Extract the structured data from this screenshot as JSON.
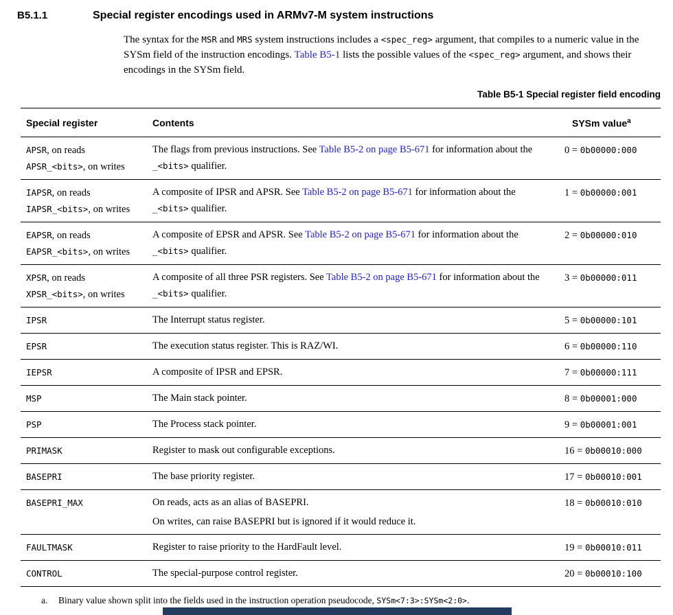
{
  "section": {
    "number": "B5.1.1",
    "title": "Special register encodings used in ARMv7-M system instructions"
  },
  "intro_segments": [
    {
      "k": "text",
      "s": "The syntax for the "
    },
    {
      "k": "code",
      "s": "MSR"
    },
    {
      "k": "text",
      "s": " and "
    },
    {
      "k": "code",
      "s": "MRS"
    },
    {
      "k": "text",
      "s": " system instructions includes a "
    },
    {
      "k": "code",
      "s": "<spec_reg>"
    },
    {
      "k": "text",
      "s": " argument, that compiles to a numeric value in the SYSm field of the instruction encodings. "
    },
    {
      "k": "link",
      "s": "Table B5-1"
    },
    {
      "k": "text",
      "s": " lists the possible values of the "
    },
    {
      "k": "code",
      "s": "<spec_reg>"
    },
    {
      "k": "text",
      "s": " argument, and shows their encodings in the SYSm field."
    }
  ],
  "table": {
    "caption": "Table B5-1 Special register field encoding",
    "columns": [
      "Special register",
      "Contents",
      "SYSm value"
    ],
    "sysm_sup": "a",
    "rows": [
      {
        "register": [
          [
            {
              "k": "code",
              "s": "APSR"
            },
            {
              "k": "text",
              "s": ", on reads"
            }
          ],
          [
            {
              "k": "code",
              "s": "APSR_<bits>"
            },
            {
              "k": "text",
              "s": ", on writes"
            }
          ]
        ],
        "contents": [
          [
            {
              "k": "text",
              "s": "The flags from previous instructions. See "
            },
            {
              "k": "link",
              "s": "Table B5-2 on page B5-671"
            },
            {
              "k": "text",
              "s": " for information about the "
            },
            {
              "k": "code",
              "s": "_<bits>"
            },
            {
              "k": "text",
              "s": " qualifier."
            }
          ]
        ],
        "sysm": {
          "decimal": "0",
          "binary": "0b00000:000"
        }
      },
      {
        "register": [
          [
            {
              "k": "code",
              "s": "IAPSR"
            },
            {
              "k": "text",
              "s": ", on reads"
            }
          ],
          [
            {
              "k": "code",
              "s": "IAPSR_<bits>"
            },
            {
              "k": "text",
              "s": ", on writes"
            }
          ]
        ],
        "contents": [
          [
            {
              "k": "text",
              "s": "A composite of IPSR and APSR. See "
            },
            {
              "k": "link",
              "s": "Table B5-2 on page B5-671"
            },
            {
              "k": "text",
              "s": " for information about the "
            },
            {
              "k": "code",
              "s": "_<bits>"
            },
            {
              "k": "text",
              "s": " qualifier."
            }
          ]
        ],
        "sysm": {
          "decimal": "1",
          "binary": "0b00000:001"
        }
      },
      {
        "register": [
          [
            {
              "k": "code",
              "s": "EAPSR"
            },
            {
              "k": "text",
              "s": ", on reads"
            }
          ],
          [
            {
              "k": "code",
              "s": "EAPSR_<bits>"
            },
            {
              "k": "text",
              "s": ", on writes"
            }
          ]
        ],
        "contents": [
          [
            {
              "k": "text",
              "s": "A composite of EPSR and APSR. See "
            },
            {
              "k": "link",
              "s": "Table B5-2 on page B5-671"
            },
            {
              "k": "text",
              "s": " for information about the "
            },
            {
              "k": "code",
              "s": "_<bits>"
            },
            {
              "k": "text",
              "s": " qualifier."
            }
          ]
        ],
        "sysm": {
          "decimal": "2",
          "binary": "0b00000:010"
        }
      },
      {
        "register": [
          [
            {
              "k": "code",
              "s": "XPSR"
            },
            {
              "k": "text",
              "s": ", on reads"
            }
          ],
          [
            {
              "k": "code",
              "s": "XPSR_<bits>"
            },
            {
              "k": "text",
              "s": ", on writes"
            }
          ]
        ],
        "contents": [
          [
            {
              "k": "text",
              "s": "A composite of all three PSR registers. See "
            },
            {
              "k": "link",
              "s": "Table B5-2 on page B5-671"
            },
            {
              "k": "text",
              "s": " for information about the "
            },
            {
              "k": "code",
              "s": "_<bits>"
            },
            {
              "k": "text",
              "s": " qualifier."
            }
          ]
        ],
        "sysm": {
          "decimal": "3",
          "binary": "0b00000:011"
        }
      },
      {
        "register": [
          [
            {
              "k": "code",
              "s": "IPSR"
            }
          ]
        ],
        "contents": [
          [
            {
              "k": "text",
              "s": "The Interrupt status register."
            }
          ]
        ],
        "sysm": {
          "decimal": "5",
          "binary": "0b00000:101"
        }
      },
      {
        "register": [
          [
            {
              "k": "code",
              "s": "EPSR"
            }
          ]
        ],
        "contents": [
          [
            {
              "k": "text",
              "s": "The execution status register. This is RAZ/WI."
            }
          ]
        ],
        "sysm": {
          "decimal": "6",
          "binary": "0b00000:110"
        }
      },
      {
        "register": [
          [
            {
              "k": "code",
              "s": "IEPSR"
            }
          ]
        ],
        "contents": [
          [
            {
              "k": "text",
              "s": "A composite of IPSR and EPSR."
            }
          ]
        ],
        "sysm": {
          "decimal": "7",
          "binary": "0b00000:111"
        }
      },
      {
        "register": [
          [
            {
              "k": "code",
              "s": "MSP"
            }
          ]
        ],
        "contents": [
          [
            {
              "k": "text",
              "s": "The Main stack pointer."
            }
          ]
        ],
        "sysm": {
          "decimal": "8",
          "binary": "0b00001:000"
        }
      },
      {
        "register": [
          [
            {
              "k": "code",
              "s": "PSP"
            }
          ]
        ],
        "contents": [
          [
            {
              "k": "text",
              "s": "The Process stack pointer."
            }
          ]
        ],
        "sysm": {
          "decimal": "9",
          "binary": "0b00001:001"
        }
      },
      {
        "register": [
          [
            {
              "k": "code",
              "s": "PRIMASK"
            }
          ]
        ],
        "contents": [
          [
            {
              "k": "text",
              "s": "Register to mask out configurable exceptions."
            }
          ]
        ],
        "sysm": {
          "decimal": "16",
          "binary": "0b00010:000"
        }
      },
      {
        "register": [
          [
            {
              "k": "code",
              "s": "BASEPRI"
            }
          ]
        ],
        "contents": [
          [
            {
              "k": "text",
              "s": "The base priority register."
            }
          ]
        ],
        "sysm": {
          "decimal": "17",
          "binary": "0b00010:001"
        }
      },
      {
        "register": [
          [
            {
              "k": "code",
              "s": "BASEPRI_MAX"
            }
          ]
        ],
        "contents": [
          [
            {
              "k": "text",
              "s": "On reads, acts as an alias of BASEPRI."
            }
          ],
          [
            {
              "k": "text",
              "s": "On writes, can raise BASEPRI but is ignored if it would reduce it."
            }
          ]
        ],
        "sysm": {
          "decimal": "18",
          "binary": "0b00010:010"
        }
      },
      {
        "register": [
          [
            {
              "k": "code",
              "s": "FAULTMASK"
            }
          ]
        ],
        "contents": [
          [
            {
              "k": "text",
              "s": "Register to raise priority to the HardFault level."
            }
          ]
        ],
        "sysm": {
          "decimal": "19",
          "binary": "0b00010:011"
        }
      },
      {
        "register": [
          [
            {
              "k": "code",
              "s": "CONTROL"
            }
          ]
        ],
        "contents": [
          [
            {
              "k": "text",
              "s": "The special-purpose control register."
            }
          ]
        ],
        "sysm": {
          "decimal": "20",
          "binary": "0b00010:100"
        }
      }
    ]
  },
  "footnote": {
    "marker": "a.",
    "segments": [
      {
        "k": "text",
        "s": "Binary value shown split into the fields used in the instruction operation pseudocode, "
      },
      {
        "k": "code",
        "s": "SYSm<7:3>:SYSm<2:0>"
      },
      {
        "k": "text",
        "s": "."
      }
    ]
  },
  "colors": {
    "link": "#2222CC",
    "accent_bar": "#243A5E",
    "rule": "#000000"
  }
}
